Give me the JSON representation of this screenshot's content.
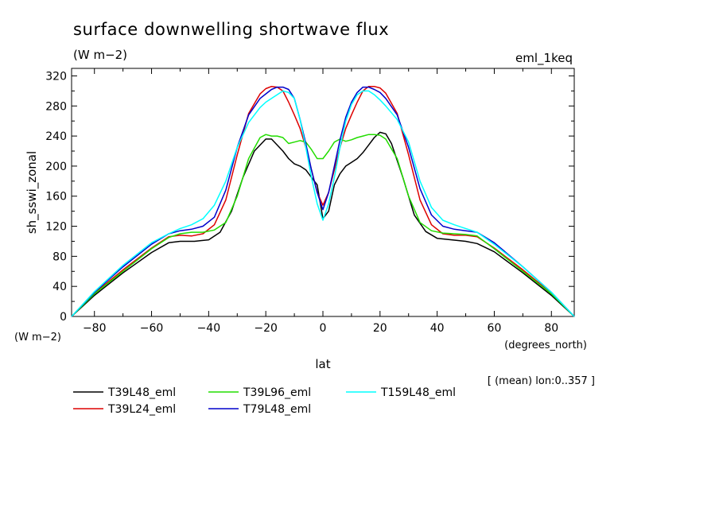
{
  "header": {
    "title": "surface downwelling shortwave flux",
    "units": "(W m−2)",
    "run_tag": "eml_1keq",
    "y_units_label": "(W m−2)",
    "x_units_label": "(degrees_north)",
    "mean_note": "[ (mean) lon:0..357 ]"
  },
  "chart_data": {
    "type": "line",
    "title": "surface downwelling shortwave flux",
    "ylabel": "sh_sswi_zonal",
    "xlabel": "lat",
    "xlim": [
      -88,
      88
    ],
    "ylim": [
      0,
      330
    ],
    "xticks": [
      -80,
      -60,
      -40,
      -20,
      0,
      20,
      40,
      60,
      80
    ],
    "yticks": [
      0,
      40,
      80,
      120,
      160,
      200,
      240,
      280,
      320
    ],
    "grid": false,
    "legend_position": "bottom",
    "series": [
      {
        "name": "T39L48_eml",
        "color": "#000000",
        "x": [
          -88,
          -80,
          -70,
          -60,
          -54,
          -50,
          -45,
          -40,
          -36,
          -32,
          -28,
          -24,
          -20,
          -18,
          -16,
          -14,
          -12,
          -10,
          -8,
          -6,
          -4,
          -2,
          0,
          2,
          4,
          6,
          8,
          10,
          12,
          14,
          16,
          18,
          20,
          22,
          24,
          28,
          32,
          36,
          40,
          45,
          50,
          54,
          60,
          70,
          80,
          88
        ],
        "y": [
          0,
          28,
          58,
          85,
          98,
          100,
          100,
          102,
          112,
          140,
          185,
          220,
          236,
          236,
          228,
          220,
          210,
          203,
          200,
          195,
          185,
          175,
          130,
          140,
          175,
          190,
          200,
          205,
          210,
          218,
          228,
          238,
          245,
          243,
          230,
          185,
          135,
          113,
          104,
          102,
          100,
          97,
          86,
          58,
          28,
          0
        ]
      },
      {
        "name": "T39L24_eml",
        "color": "#dd0000",
        "x": [
          -88,
          -80,
          -70,
          -60,
          -54,
          -50,
          -46,
          -42,
          -38,
          -34,
          -30,
          -26,
          -22,
          -20,
          -18,
          -16,
          -14,
          -12,
          -10,
          -8,
          -6,
          -4,
          -2,
          0,
          2,
          4,
          6,
          8,
          10,
          12,
          14,
          16,
          18,
          20,
          22,
          26,
          30,
          34,
          38,
          42,
          46,
          50,
          54,
          60,
          70,
          80,
          88
        ],
        "y": [
          0,
          31,
          62,
          91,
          106,
          108,
          107,
          110,
          122,
          155,
          215,
          270,
          296,
          303,
          306,
          305,
          300,
          285,
          268,
          250,
          225,
          195,
          165,
          148,
          165,
          195,
          225,
          250,
          268,
          285,
          300,
          306,
          306,
          304,
          297,
          270,
          215,
          155,
          122,
          110,
          108,
          108,
          106,
          91,
          62,
          31,
          0
        ]
      },
      {
        "name": "T39L96_eml",
        "color": "#22dd00",
        "x": [
          -88,
          -80,
          -70,
          -60,
          -54,
          -50,
          -46,
          -42,
          -38,
          -34,
          -30,
          -26,
          -22,
          -20,
          -18,
          -16,
          -14,
          -12,
          -10,
          -8,
          -6,
          -4,
          -2,
          0,
          2,
          4,
          6,
          8,
          10,
          12,
          14,
          16,
          18,
          20,
          22,
          26,
          30,
          34,
          38,
          42,
          46,
          50,
          54,
          60,
          70,
          80,
          88
        ],
        "y": [
          0,
          30,
          60,
          90,
          105,
          110,
          112,
          112,
          115,
          125,
          160,
          210,
          238,
          242,
          240,
          240,
          238,
          230,
          232,
          234,
          232,
          222,
          210,
          210,
          220,
          232,
          236,
          233,
          235,
          238,
          240,
          242,
          242,
          241,
          236,
          210,
          160,
          125,
          114,
          111,
          110,
          109,
          107,
          90,
          60,
          30,
          0
        ]
      },
      {
        "name": "T79L48_eml",
        "color": "#0000cc",
        "x": [
          -88,
          -80,
          -70,
          -60,
          -54,
          -50,
          -46,
          -42,
          -38,
          -34,
          -30,
          -26,
          -22,
          -20,
          -18,
          -16,
          -14,
          -12,
          -10,
          -8,
          -6,
          -4,
          -2,
          0,
          2,
          4,
          6,
          8,
          10,
          12,
          14,
          16,
          18,
          20,
          22,
          26,
          30,
          34,
          38,
          42,
          46,
          50,
          54,
          60,
          70,
          80,
          88
        ],
        "y": [
          0,
          32,
          66,
          96,
          110,
          114,
          116,
          120,
          132,
          168,
          225,
          268,
          290,
          296,
          302,
          305,
          305,
          302,
          290,
          262,
          230,
          195,
          165,
          142,
          165,
          200,
          235,
          265,
          285,
          298,
          305,
          305,
          302,
          298,
          290,
          268,
          225,
          170,
          135,
          120,
          116,
          114,
          112,
          98,
          66,
          32,
          0
        ]
      },
      {
        "name": "T159L48_eml",
        "color": "#00ffff",
        "x": [
          -88,
          -80,
          -70,
          -60,
          -54,
          -50,
          -46,
          -42,
          -38,
          -34,
          -30,
          -26,
          -22,
          -20,
          -18,
          -16,
          -14,
          -12,
          -10,
          -8,
          -6,
          -4,
          -2,
          0,
          2,
          4,
          6,
          8,
          10,
          12,
          14,
          16,
          18,
          20,
          22,
          26,
          30,
          34,
          38,
          42,
          46,
          50,
          54,
          60,
          70,
          80,
          88
        ],
        "y": [
          0,
          33,
          68,
          98,
          110,
          117,
          122,
          130,
          148,
          180,
          225,
          258,
          278,
          285,
          290,
          295,
          300,
          298,
          290,
          262,
          225,
          185,
          150,
          128,
          150,
          185,
          225,
          260,
          282,
          295,
          300,
          300,
          295,
          288,
          280,
          262,
          232,
          180,
          145,
          128,
          122,
          117,
          112,
          96,
          66,
          32,
          0
        ]
      }
    ]
  }
}
